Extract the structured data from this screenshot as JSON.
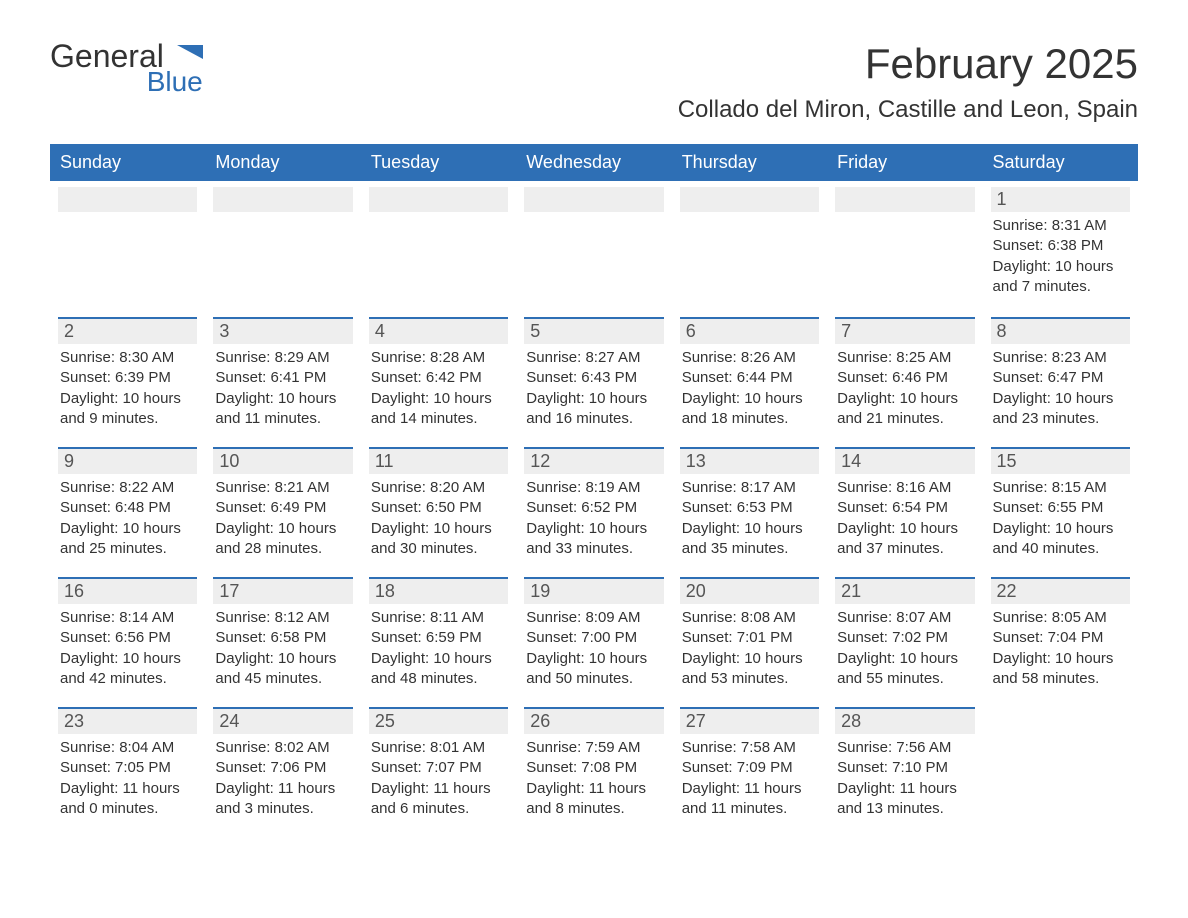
{
  "logo": {
    "text1": "General",
    "text2": "Blue",
    "accent_color": "#2e6fb5"
  },
  "title": "February 2025",
  "location": "Collado del Miron, Castille and Leon, Spain",
  "columns": [
    "Sunday",
    "Monday",
    "Tuesday",
    "Wednesday",
    "Thursday",
    "Friday",
    "Saturday"
  ],
  "header_bg": "#2e6fb5",
  "header_fg": "#ffffff",
  "daynum_bg": "#eeeeee",
  "border_accent": "#2e6fb5",
  "weeks": [
    [
      null,
      null,
      null,
      null,
      null,
      null,
      {
        "n": "1",
        "sunrise": "8:31 AM",
        "sunset": "6:38 PM",
        "daylight": "10 hours and 7 minutes."
      }
    ],
    [
      {
        "n": "2",
        "sunrise": "8:30 AM",
        "sunset": "6:39 PM",
        "daylight": "10 hours and 9 minutes."
      },
      {
        "n": "3",
        "sunrise": "8:29 AM",
        "sunset": "6:41 PM",
        "daylight": "10 hours and 11 minutes."
      },
      {
        "n": "4",
        "sunrise": "8:28 AM",
        "sunset": "6:42 PM",
        "daylight": "10 hours and 14 minutes."
      },
      {
        "n": "5",
        "sunrise": "8:27 AM",
        "sunset": "6:43 PM",
        "daylight": "10 hours and 16 minutes."
      },
      {
        "n": "6",
        "sunrise": "8:26 AM",
        "sunset": "6:44 PM",
        "daylight": "10 hours and 18 minutes."
      },
      {
        "n": "7",
        "sunrise": "8:25 AM",
        "sunset": "6:46 PM",
        "daylight": "10 hours and 21 minutes."
      },
      {
        "n": "8",
        "sunrise": "8:23 AM",
        "sunset": "6:47 PM",
        "daylight": "10 hours and 23 minutes."
      }
    ],
    [
      {
        "n": "9",
        "sunrise": "8:22 AM",
        "sunset": "6:48 PM",
        "daylight": "10 hours and 25 minutes."
      },
      {
        "n": "10",
        "sunrise": "8:21 AM",
        "sunset": "6:49 PM",
        "daylight": "10 hours and 28 minutes."
      },
      {
        "n": "11",
        "sunrise": "8:20 AM",
        "sunset": "6:50 PM",
        "daylight": "10 hours and 30 minutes."
      },
      {
        "n": "12",
        "sunrise": "8:19 AM",
        "sunset": "6:52 PM",
        "daylight": "10 hours and 33 minutes."
      },
      {
        "n": "13",
        "sunrise": "8:17 AM",
        "sunset": "6:53 PM",
        "daylight": "10 hours and 35 minutes."
      },
      {
        "n": "14",
        "sunrise": "8:16 AM",
        "sunset": "6:54 PM",
        "daylight": "10 hours and 37 minutes."
      },
      {
        "n": "15",
        "sunrise": "8:15 AM",
        "sunset": "6:55 PM",
        "daylight": "10 hours and 40 minutes."
      }
    ],
    [
      {
        "n": "16",
        "sunrise": "8:14 AM",
        "sunset": "6:56 PM",
        "daylight": "10 hours and 42 minutes."
      },
      {
        "n": "17",
        "sunrise": "8:12 AM",
        "sunset": "6:58 PM",
        "daylight": "10 hours and 45 minutes."
      },
      {
        "n": "18",
        "sunrise": "8:11 AM",
        "sunset": "6:59 PM",
        "daylight": "10 hours and 48 minutes."
      },
      {
        "n": "19",
        "sunrise": "8:09 AM",
        "sunset": "7:00 PM",
        "daylight": "10 hours and 50 minutes."
      },
      {
        "n": "20",
        "sunrise": "8:08 AM",
        "sunset": "7:01 PM",
        "daylight": "10 hours and 53 minutes."
      },
      {
        "n": "21",
        "sunrise": "8:07 AM",
        "sunset": "7:02 PM",
        "daylight": "10 hours and 55 minutes."
      },
      {
        "n": "22",
        "sunrise": "8:05 AM",
        "sunset": "7:04 PM",
        "daylight": "10 hours and 58 minutes."
      }
    ],
    [
      {
        "n": "23",
        "sunrise": "8:04 AM",
        "sunset": "7:05 PM",
        "daylight": "11 hours and 0 minutes."
      },
      {
        "n": "24",
        "sunrise": "8:02 AM",
        "sunset": "7:06 PM",
        "daylight": "11 hours and 3 minutes."
      },
      {
        "n": "25",
        "sunrise": "8:01 AM",
        "sunset": "7:07 PM",
        "daylight": "11 hours and 6 minutes."
      },
      {
        "n": "26",
        "sunrise": "7:59 AM",
        "sunset": "7:08 PM",
        "daylight": "11 hours and 8 minutes."
      },
      {
        "n": "27",
        "sunrise": "7:58 AM",
        "sunset": "7:09 PM",
        "daylight": "11 hours and 11 minutes."
      },
      {
        "n": "28",
        "sunrise": "7:56 AM",
        "sunset": "7:10 PM",
        "daylight": "11 hours and 13 minutes."
      },
      null
    ]
  ],
  "labels": {
    "sunrise": "Sunrise: ",
    "sunset": "Sunset: ",
    "daylight": "Daylight: "
  }
}
